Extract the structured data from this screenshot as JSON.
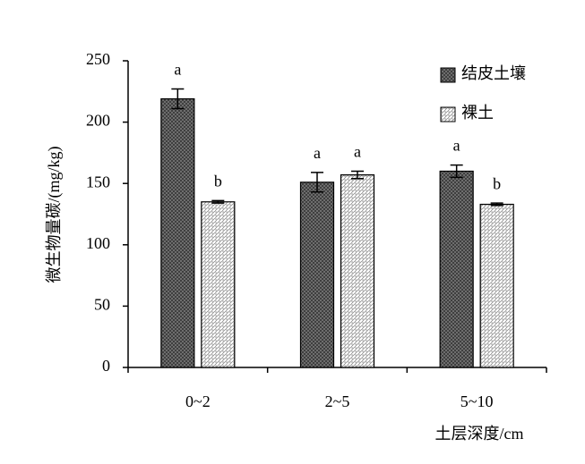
{
  "chart_data": {
    "type": "bar",
    "y_label": "微生物量碳/(mg/kg)",
    "x_label": "土层深度/cm",
    "categories": [
      "0~2",
      "2~5",
      "5~10"
    ],
    "series": [
      {
        "name": "结皮土壤",
        "color": "#7a7a7a",
        "values": [
          219,
          151,
          160
        ],
        "errors": [
          8,
          8,
          5
        ],
        "letters": [
          "a",
          "a",
          "a"
        ]
      },
      {
        "name": "裸土",
        "color": "#ffffff",
        "values": [
          135,
          157,
          133
        ],
        "errors": [
          1,
          3,
          1
        ],
        "letters": [
          "b",
          "a",
          "b"
        ]
      }
    ],
    "ylim": [
      0,
      250
    ],
    "yticks": [
      0,
      50,
      100,
      150,
      200,
      250
    ],
    "legend": "upper right"
  }
}
